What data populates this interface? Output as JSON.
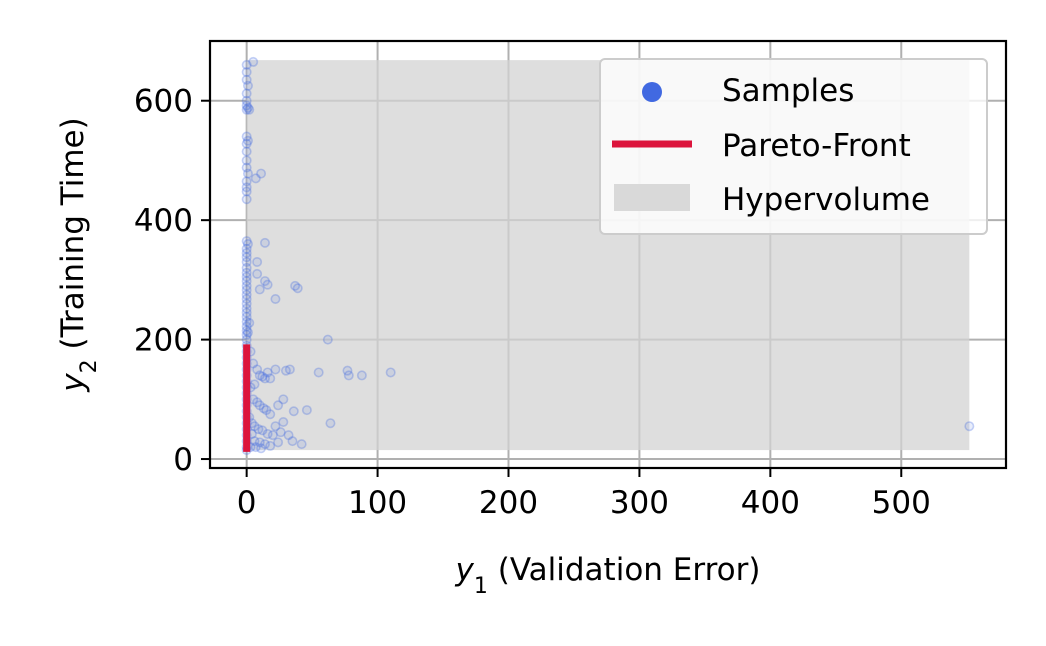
{
  "chart_data": {
    "type": "scatter",
    "xlabel": {
      "var": "y",
      "sub": "1",
      "text": " (Validation Error)"
    },
    "ylabel": {
      "var": "y",
      "sub": "2",
      "text": " (Training Time)"
    },
    "xlim": [
      -28,
      580
    ],
    "ylim": [
      -15,
      700
    ],
    "x_ticks": [
      0,
      100,
      200,
      300,
      400,
      500
    ],
    "y_ticks": [
      0,
      200,
      400,
      600
    ],
    "x_tick_labels": [
      "0",
      "100",
      "200",
      "300",
      "400",
      "500"
    ],
    "y_tick_labels": [
      "0",
      "200",
      "400",
      "600"
    ],
    "grid": true,
    "legend": {
      "placement": "top-right",
      "entries": [
        {
          "label": "Samples",
          "kind": "marker",
          "color": "#4169E1"
        },
        {
          "label": "Pareto-Front",
          "kind": "line",
          "color": "#DC143C"
        },
        {
          "label": "Hypervolume",
          "kind": "patch",
          "color": "#D3D3D3"
        }
      ]
    },
    "hypervolume": {
      "x_range": [
        0,
        552
      ],
      "y_range": [
        15,
        668
      ],
      "color": "#D3D3D3"
    },
    "pareto_front": {
      "x": [
        0,
        0
      ],
      "y": [
        12,
        192
      ],
      "color": "#DC143C"
    },
    "series": [
      {
        "name": "Samples",
        "color": "#4169E1",
        "points": [
          [
            0,
            660
          ],
          [
            5,
            665
          ],
          [
            0,
            648
          ],
          [
            0,
            635
          ],
          [
            1,
            625
          ],
          [
            0,
            612
          ],
          [
            0,
            600
          ],
          [
            0,
            592
          ],
          [
            1,
            588
          ],
          [
            0,
            585
          ],
          [
            2,
            585
          ],
          [
            0,
            540
          ],
          [
            1,
            533
          ],
          [
            0,
            528
          ],
          [
            0,
            515
          ],
          [
            0,
            500
          ],
          [
            0,
            488
          ],
          [
            1,
            478
          ],
          [
            0,
            465
          ],
          [
            0,
            455
          ],
          [
            11,
            478
          ],
          [
            7,
            470
          ],
          [
            0,
            448
          ],
          [
            0,
            435
          ],
          [
            0,
            365
          ],
          [
            1,
            360
          ],
          [
            0,
            352
          ],
          [
            0,
            345
          ],
          [
            0,
            338
          ],
          [
            0,
            330
          ],
          [
            0,
            320
          ],
          [
            0,
            312
          ],
          [
            0,
            305
          ],
          [
            0,
            298
          ],
          [
            0,
            290
          ],
          [
            0,
            283
          ],
          [
            0,
            275
          ],
          [
            0,
            268
          ],
          [
            0,
            260
          ],
          [
            0,
            252
          ],
          [
            0,
            245
          ],
          [
            0,
            238
          ],
          [
            0,
            230
          ],
          [
            0,
            222
          ],
          [
            0,
            215
          ],
          [
            0,
            208
          ],
          [
            0,
            200
          ],
          [
            14,
            362
          ],
          [
            8,
            330
          ],
          [
            14,
            298
          ],
          [
            16,
            292
          ],
          [
            22,
            268
          ],
          [
            37,
            290
          ],
          [
            39,
            286
          ],
          [
            8,
            310
          ],
          [
            10,
            284
          ],
          [
            1,
            212
          ],
          [
            2,
            228
          ],
          [
            0,
            190
          ],
          [
            0,
            180
          ],
          [
            0,
            170
          ],
          [
            0,
            160
          ],
          [
            0,
            150
          ],
          [
            0,
            140
          ],
          [
            0,
            130
          ],
          [
            0,
            120
          ],
          [
            0,
            110
          ],
          [
            0,
            100
          ],
          [
            0,
            90
          ],
          [
            0,
            80
          ],
          [
            0,
            70
          ],
          [
            0,
            60
          ],
          [
            0,
            50
          ],
          [
            0,
            40
          ],
          [
            0,
            30
          ],
          [
            0,
            20
          ],
          [
            0,
            15
          ],
          [
            3,
            180
          ],
          [
            5,
            160
          ],
          [
            8,
            150
          ],
          [
            10,
            140
          ],
          [
            12,
            138
          ],
          [
            14,
            135
          ],
          [
            16,
            145
          ],
          [
            18,
            135
          ],
          [
            22,
            150
          ],
          [
            30,
            148
          ],
          [
            33,
            150
          ],
          [
            55,
            145
          ],
          [
            62,
            200
          ],
          [
            77,
            148
          ],
          [
            78,
            140
          ],
          [
            88,
            140
          ],
          [
            110,
            145
          ],
          [
            5,
            100
          ],
          [
            8,
            95
          ],
          [
            10,
            90
          ],
          [
            13,
            85
          ],
          [
            15,
            82
          ],
          [
            18,
            75
          ],
          [
            24,
            90
          ],
          [
            28,
            100
          ],
          [
            36,
            80
          ],
          [
            46,
            82
          ],
          [
            64,
            60
          ],
          [
            4,
            60
          ],
          [
            6,
            55
          ],
          [
            9,
            50
          ],
          [
            12,
            48
          ],
          [
            16,
            42
          ],
          [
            20,
            40
          ],
          [
            26,
            45
          ],
          [
            32,
            40
          ],
          [
            42,
            25
          ],
          [
            35,
            30
          ],
          [
            6,
            30
          ],
          [
            10,
            28
          ],
          [
            14,
            25
          ],
          [
            18,
            22
          ],
          [
            24,
            28
          ],
          [
            3,
            20
          ],
          [
            7,
            20
          ],
          [
            11,
            18
          ],
          [
            4,
            42
          ],
          [
            2,
            70
          ],
          [
            3,
            120
          ],
          [
            6,
            125
          ],
          [
            22,
            55
          ],
          [
            28,
            62
          ],
          [
            552,
            55
          ]
        ]
      }
    ]
  }
}
